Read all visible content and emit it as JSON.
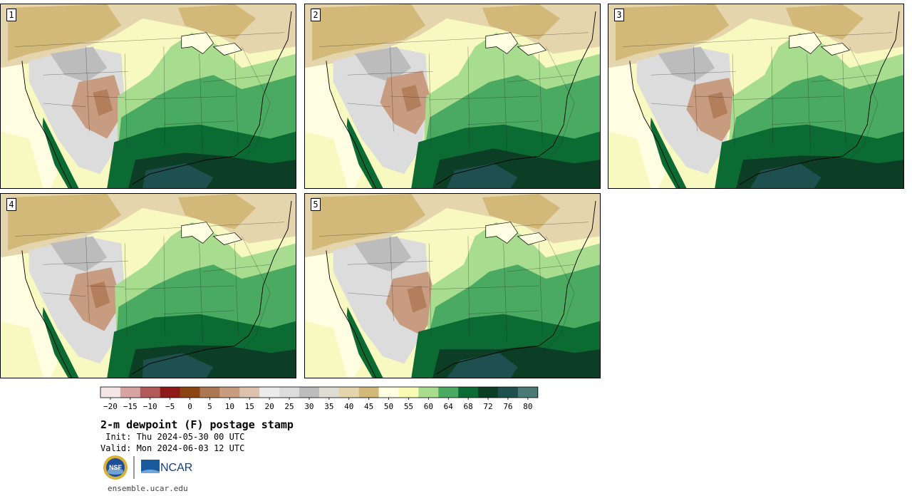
{
  "panels": [
    {
      "label": "1"
    },
    {
      "label": "2"
    },
    {
      "label": "3"
    },
    {
      "label": "4"
    },
    {
      "label": "5"
    }
  ],
  "colorbar": {
    "ticks": [
      "−20",
      "−15",
      "−10",
      "−5",
      "0",
      "5",
      "10",
      "15",
      "20",
      "25",
      "30",
      "35",
      "40",
      "45",
      "50",
      "55",
      "60",
      "64",
      "68",
      "72",
      "76",
      "80"
    ],
    "colors": [
      "#f5e6e6",
      "#d8a3a3",
      "#b25a5a",
      "#8e1a1a",
      "#8b4513",
      "#ad7753",
      "#c89c80",
      "#dcc2ac",
      "#ebebeb",
      "#dcdcdc",
      "#bcbcbc",
      "#dedcd3",
      "#e5d5ad",
      "#d3b979",
      "#fffee2",
      "#f8fbb4",
      "#a8dc8e",
      "#4baa61",
      "#0b6b33",
      "#0b3e24",
      "#1f5050",
      "#4b7a76"
    ]
  },
  "title": {
    "main": "2-m dewpoint (F) postage stamp",
    "init": " Init: Thu 2024-05-30 00 UTC",
    "valid": "Valid: Mon 2024-06-03 12 UTC"
  },
  "logos": {
    "nsf": "NSF",
    "ncar": "NCAR"
  },
  "footer": {
    "url": "ensemble.ucar.edu"
  }
}
